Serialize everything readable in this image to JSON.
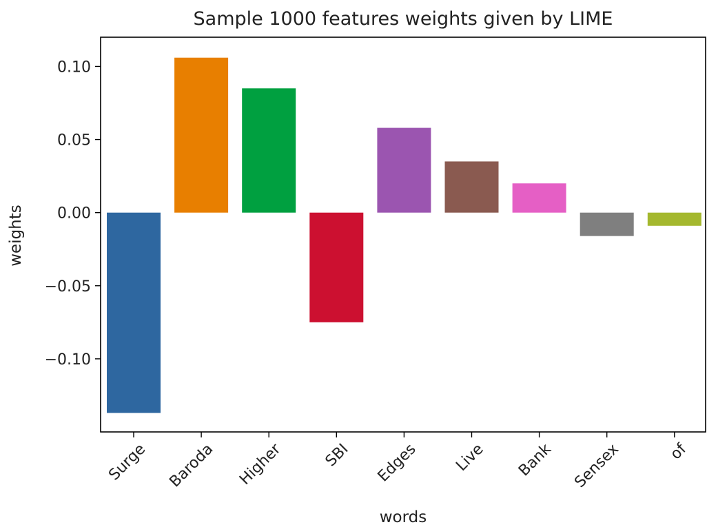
{
  "chart_data": {
    "type": "bar",
    "title": "Sample 1000 features weights given by LIME",
    "xlabel": "words",
    "ylabel": "weights",
    "categories": [
      "Surge",
      "Baroda",
      "Higher",
      "SBI",
      "Edges",
      "Live",
      "Bank",
      "Sensex",
      "of"
    ],
    "values": [
      -0.137,
      0.106,
      0.085,
      -0.075,
      0.058,
      0.035,
      0.02,
      -0.016,
      -0.009
    ],
    "colors": [
      "#2e67a0",
      "#e87f00",
      "#00a040",
      "#cc1030",
      "#9b55b0",
      "#8a5a50",
      "#e55fc5",
      "#7f7f7f",
      "#a4b82e"
    ],
    "ylim": [
      -0.15,
      0.12
    ],
    "yticks": [
      0.1,
      0.05,
      0.0,
      -0.05,
      -0.1
    ],
    "ytick_labels": [
      "0.10",
      "0.05",
      "0.00",
      "−0.05",
      "−0.10"
    ],
    "grid": false,
    "legend": "none"
  }
}
